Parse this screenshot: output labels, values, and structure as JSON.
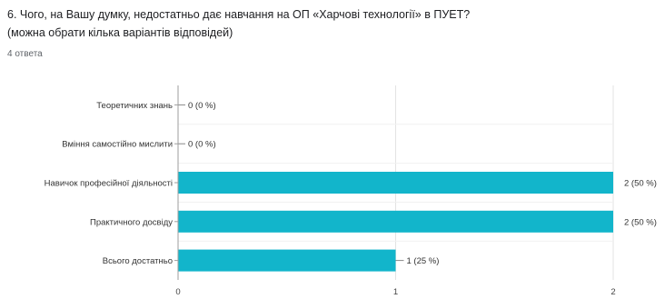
{
  "question": {
    "line1": "6. Чого, на Вашу думку, недостатньо дає навчання на ОП «Харчові технології» в ПУЕТ?",
    "line2": "(можна обрати кілька варіантів відповідей)"
  },
  "response_count": "4 ответа",
  "colors": {
    "bar": "#12b5cb",
    "grid": "#e3e3e3",
    "axis": "#9e9e9e"
  },
  "chart_data": {
    "type": "bar",
    "orientation": "horizontal",
    "categories": [
      "Теоретичних знань",
      "Вміння самостійно мислити",
      "Навичок професійної діяльності",
      "Практичного досвіду",
      "Всього достатньо"
    ],
    "values": [
      0,
      0,
      2,
      2,
      1
    ],
    "value_labels": [
      "0 (0 %)",
      "0 (0 %)",
      "2 (50 %)",
      "2 (50 %)",
      "1 (25 %)"
    ],
    "x_ticks": [
      "0",
      "1",
      "2"
    ],
    "xlim": [
      0,
      2
    ],
    "grid": true,
    "legend": "none",
    "title": "",
    "xlabel": "",
    "ylabel": ""
  }
}
